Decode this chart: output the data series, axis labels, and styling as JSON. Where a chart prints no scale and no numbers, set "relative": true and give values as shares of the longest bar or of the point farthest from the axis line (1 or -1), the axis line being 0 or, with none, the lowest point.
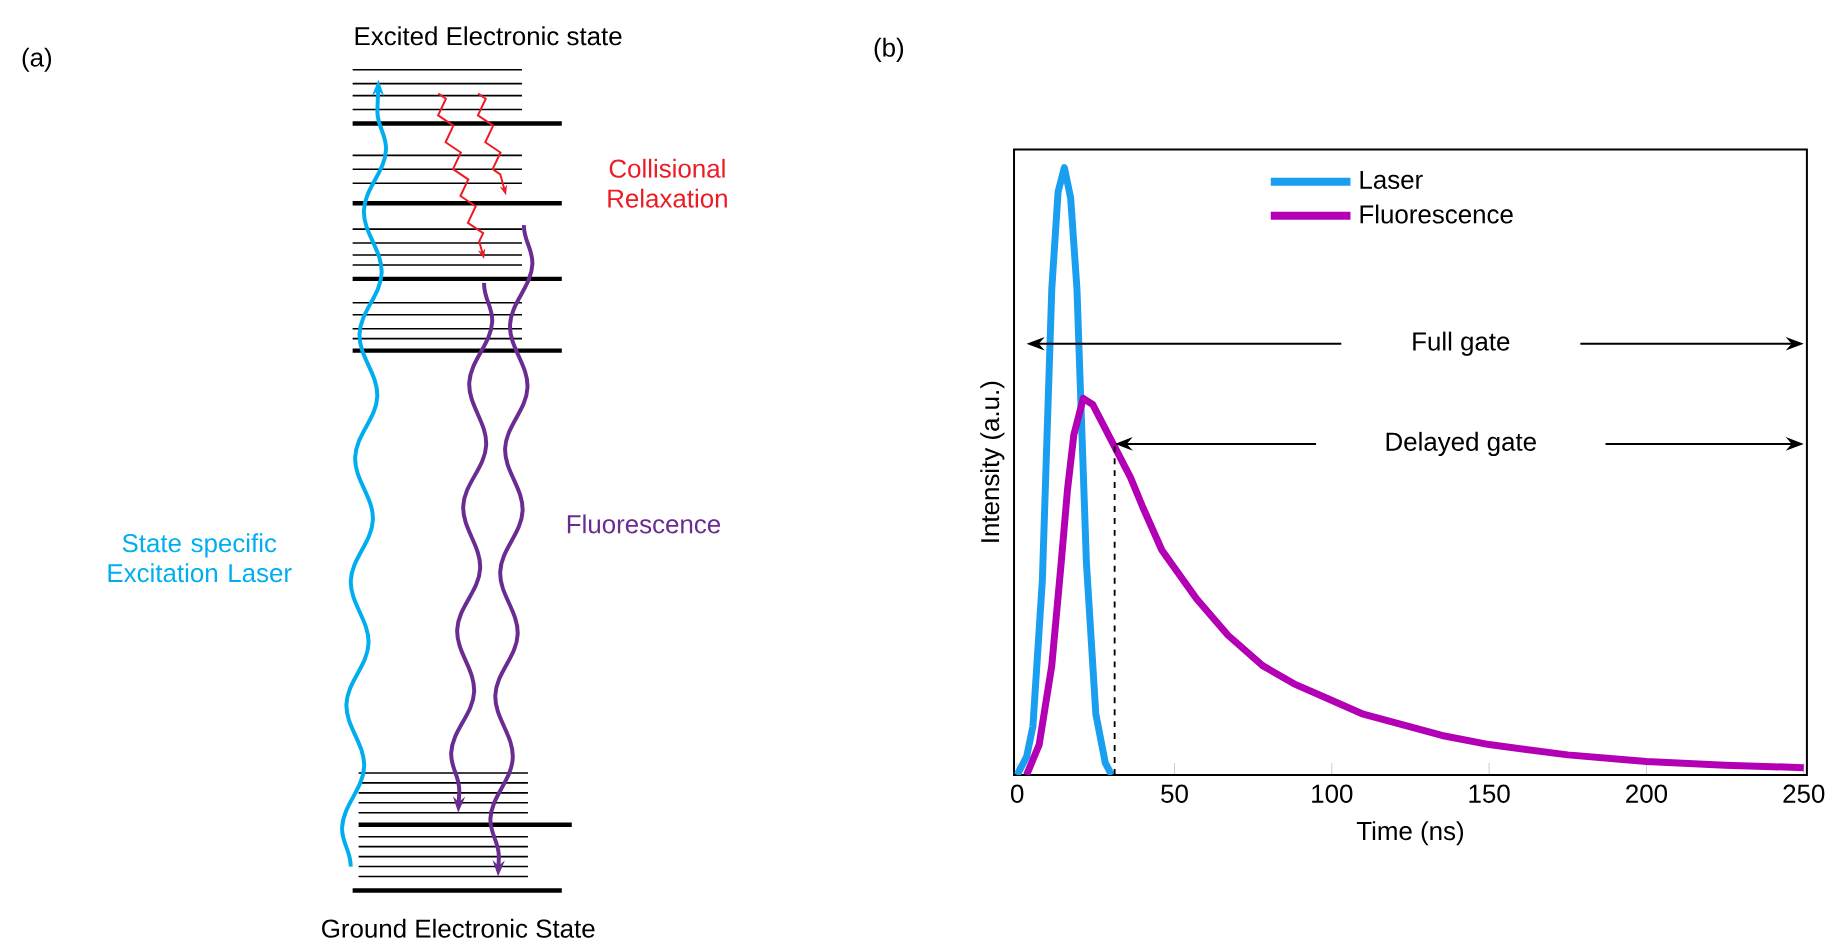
{
  "chart_data": [
    {
      "type": "other",
      "title": "(a)",
      "annotations": [
        "Excited Electronic state",
        "Collisional Relaxation",
        "State specific Excitation Laser",
        "Fluorescence",
        "Ground Electronic State"
      ]
    },
    {
      "type": "line",
      "title": "(b)",
      "xlabel": "Time (ns)",
      "ylabel": "Intensity (a.u.)",
      "relative": true,
      "xlim": [
        -1,
        251
      ],
      "xticks": [
        0,
        50,
        100,
        150,
        200,
        250
      ],
      "legend": "top",
      "grid": false,
      "line_style": "solid",
      "marker": "none",
      "series": [
        {
          "name": "Laser",
          "color": "#1a9ff0",
          "x": [
            0,
            3,
            5,
            8,
            11,
            13,
            15,
            17,
            19,
            22,
            25,
            28,
            30
          ],
          "values": [
            0,
            0.03,
            0.08,
            0.32,
            0.8,
            0.96,
            1,
            0.95,
            0.8,
            0.35,
            0.1,
            0.02,
            0
          ]
        },
        {
          "name": "Fluorescence",
          "color": "#b400b4",
          "x": [
            3,
            7,
            11,
            14,
            16,
            18,
            21,
            24,
            27,
            30,
            33,
            36,
            40,
            46,
            57,
            67,
            78,
            88,
            99,
            110,
            120,
            135,
            150,
            175,
            200,
            225,
            250
          ],
          "values": [
            0,
            0.05,
            0.18,
            0.35,
            0.47,
            0.56,
            0.62,
            0.61,
            0.58,
            0.55,
            0.52,
            0.49,
            0.44,
            0.37,
            0.29,
            0.23,
            0.18,
            0.15,
            0.125,
            0.1,
            0.086,
            0.065,
            0.05,
            0.033,
            0.022,
            0.016,
            0.012
          ]
        }
      ],
      "ref_lines": [
        {
          "axis": "x",
          "value": 31,
          "line_style": "dashed"
        }
      ],
      "annotations": [
        "Full gate",
        "Delayed gate"
      ]
    }
  ]
}
